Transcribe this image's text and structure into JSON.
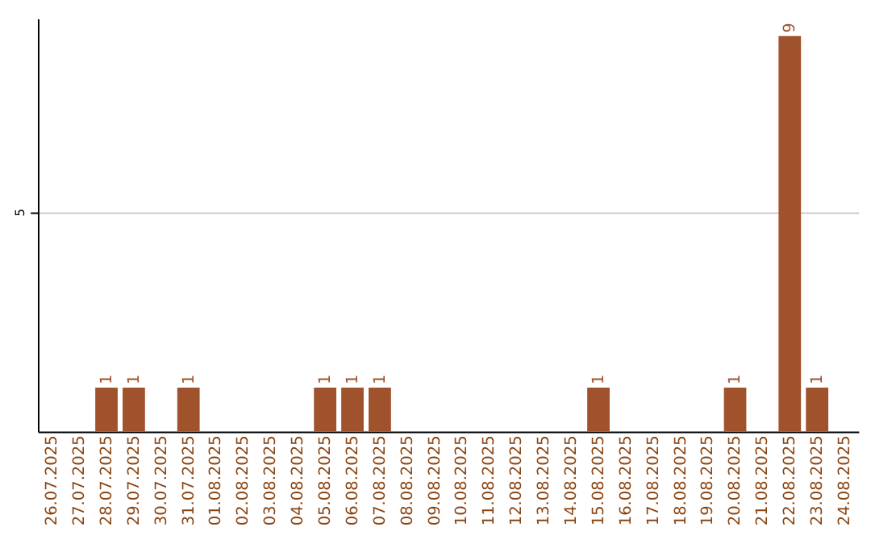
{
  "chart_data": {
    "type": "bar",
    "categories": [
      "26.07.2025",
      "27.07.2025",
      "28.07.2025",
      "29.07.2025",
      "30.07.2025",
      "31.07.2025",
      "01.08.2025",
      "02.08.2025",
      "03.08.2025",
      "04.08.2025",
      "05.08.2025",
      "06.08.2025",
      "07.08.2025",
      "08.08.2025",
      "09.08.2025",
      "10.08.2025",
      "11.08.2025",
      "12.08.2025",
      "13.08.2025",
      "14.08.2025",
      "15.08.2025",
      "16.08.2025",
      "17.08.2025",
      "18.08.2025",
      "19.08.2025",
      "20.08.2025",
      "21.08.2025",
      "22.08.2025",
      "23.08.2025",
      "24.08.2025"
    ],
    "values": [
      0,
      0,
      1,
      1,
      0,
      1,
      0,
      0,
      0,
      0,
      1,
      1,
      1,
      0,
      0,
      0,
      0,
      0,
      0,
      0,
      1,
      0,
      0,
      0,
      0,
      1,
      0,
      9,
      1,
      0
    ],
    "value_labels": [
      null,
      null,
      "1",
      "1",
      null,
      "1",
      null,
      null,
      null,
      null,
      "1",
      "1",
      "1",
      null,
      null,
      null,
      null,
      null,
      null,
      null,
      "1",
      null,
      null,
      null,
      null,
      "1",
      null,
      "9",
      "1",
      null
    ],
    "color": "#a0522d",
    "ylim": [
      0,
      9.4
    ],
    "yticks": [
      5
    ],
    "grid": "y"
  }
}
